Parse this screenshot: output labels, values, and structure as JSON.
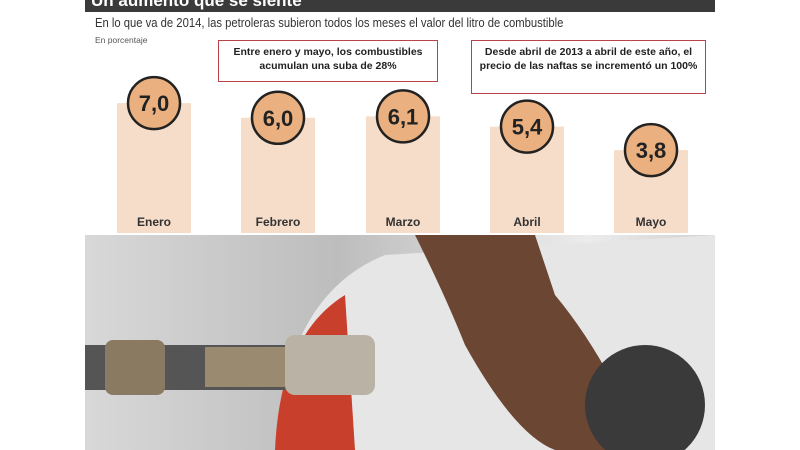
{
  "header": {
    "title": "Un aumento que se siente"
  },
  "subtitle": "En lo que va de 2014, las petroleras subieron todos los meses el valor del litro de combustible",
  "unit": "En porcentaje",
  "notes": [
    "Entre enero y mayo, los combustibles acumulan una suba de 28%",
    "Desde abril de 2013 a abril de este año, el precio de las naftas se incrementó un 100%"
  ],
  "chart_data": {
    "type": "bar",
    "categories": [
      "Enero",
      "Febrero",
      "Marzo",
      "Abril",
      "Mayo"
    ],
    "values": [
      7.0,
      6.0,
      6.1,
      5.4,
      3.8
    ],
    "value_labels": [
      "7,0",
      "6,0",
      "6,1",
      "5,4",
      "3,8"
    ],
    "ylabel": "En porcentaje",
    "grid": false,
    "colors": {
      "bar": "#f6ddc9",
      "bubble": "#ebb07f",
      "bubble_border": "#222222"
    }
  }
}
